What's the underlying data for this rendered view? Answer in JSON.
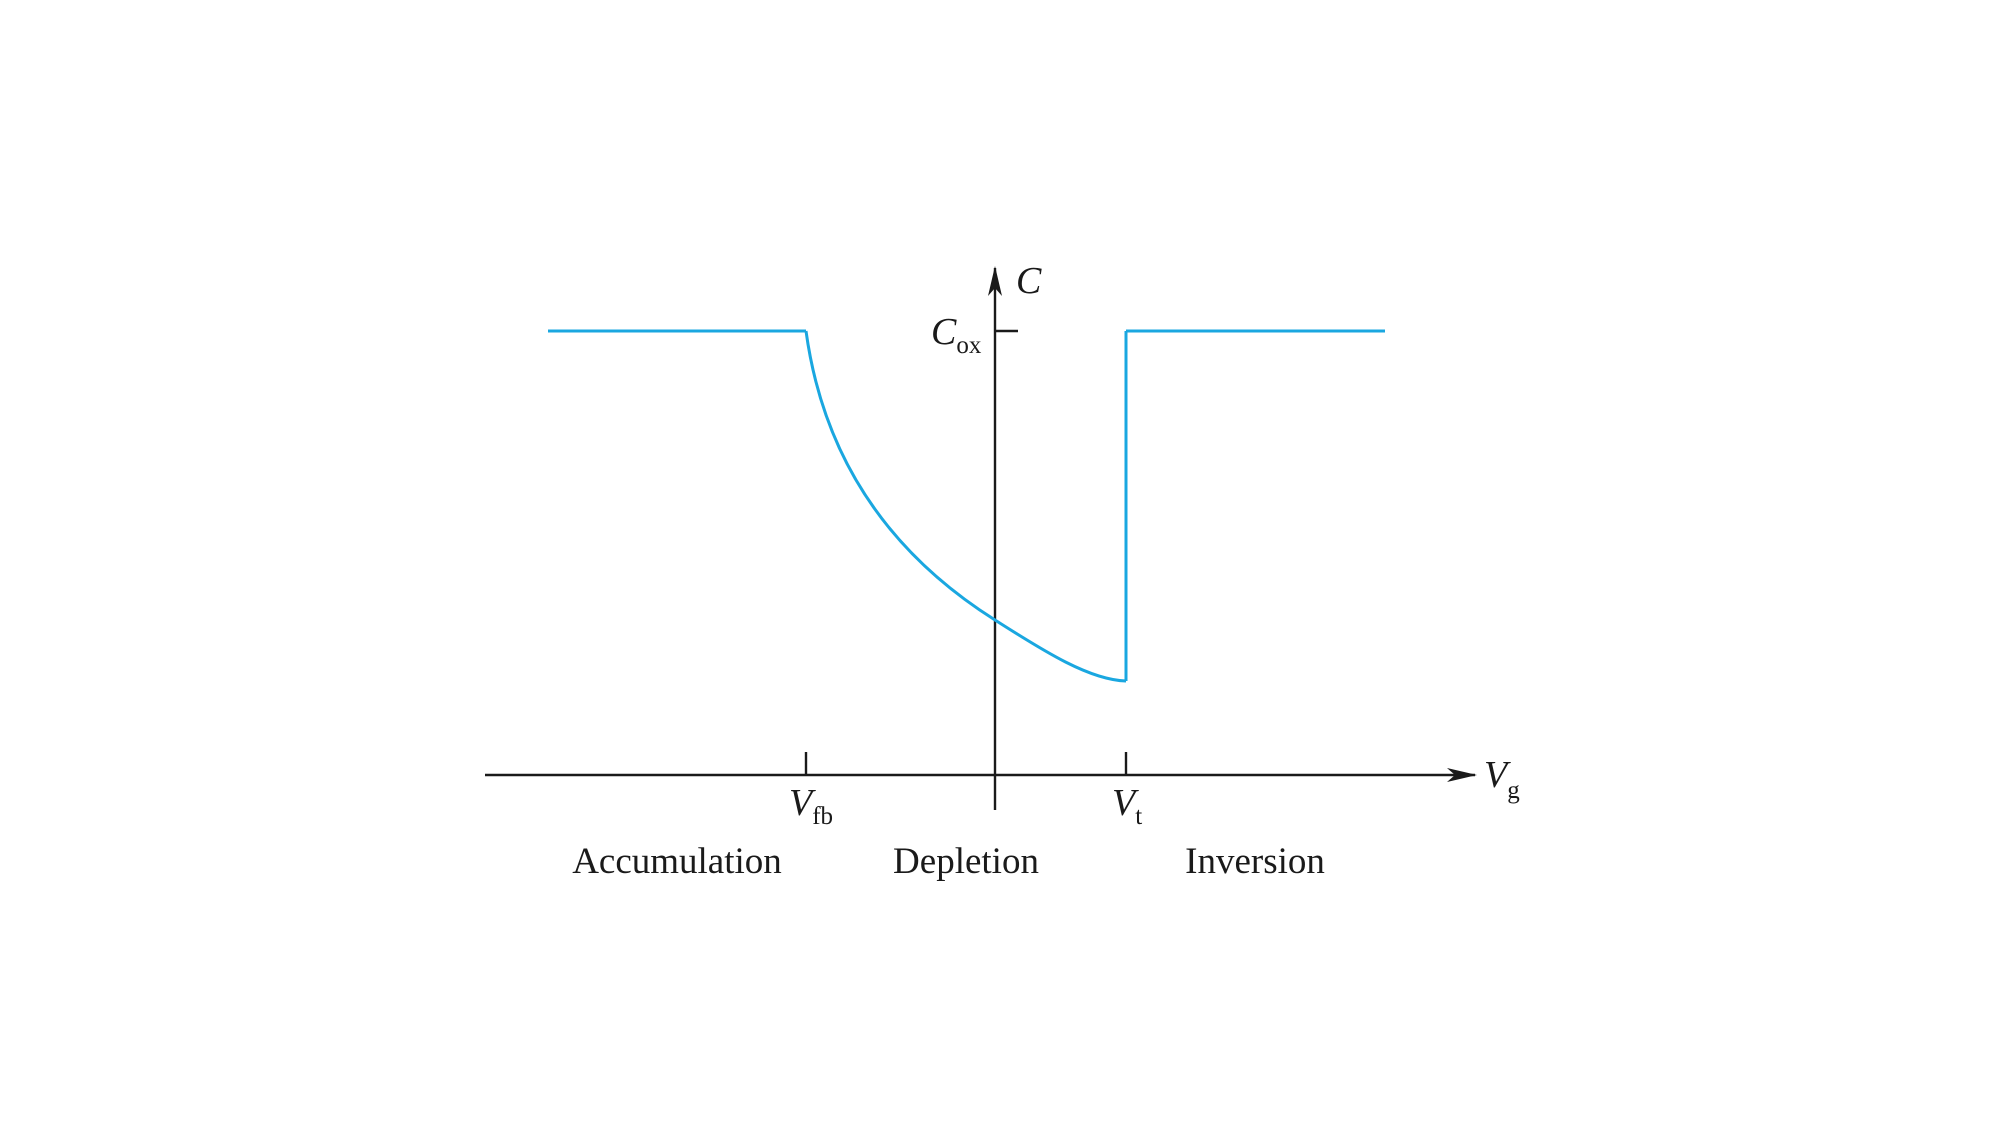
{
  "chart_data": {
    "type": "line",
    "title": "",
    "xlabel": {
      "main": "V",
      "sub": "g"
    },
    "ylabel": {
      "main": "C",
      "sub": ""
    },
    "y_tick": {
      "main": "C",
      "sub": "ox"
    },
    "x_ticks": [
      {
        "main": "V",
        "sub": "fb"
      },
      {
        "main": "V",
        "sub": "t"
      }
    ],
    "regions": [
      "Accumulation",
      "Depletion",
      "Inversion"
    ],
    "series": [
      {
        "color": "#1aa7e0",
        "points_desc": "C equals Cox for Vg below Vfb, decreases through depletion to a minimum just before Vt, then jumps back to Cox in inversion",
        "x": [
          -3.0,
          -1.0,
          -0.8,
          -0.5,
          -0.2,
          0.0,
          0.3,
          0.6,
          0.8,
          0.8,
          1.0,
          2.0,
          2.4
        ],
        "y": [
          1.0,
          1.0,
          0.8,
          0.62,
          0.47,
          0.39,
          0.3,
          0.24,
          0.21,
          1.0,
          1.0,
          1.0,
          1.0
        ]
      }
    ],
    "axis_color": "#1a1a1a",
    "grid": false,
    "legend": "none"
  }
}
